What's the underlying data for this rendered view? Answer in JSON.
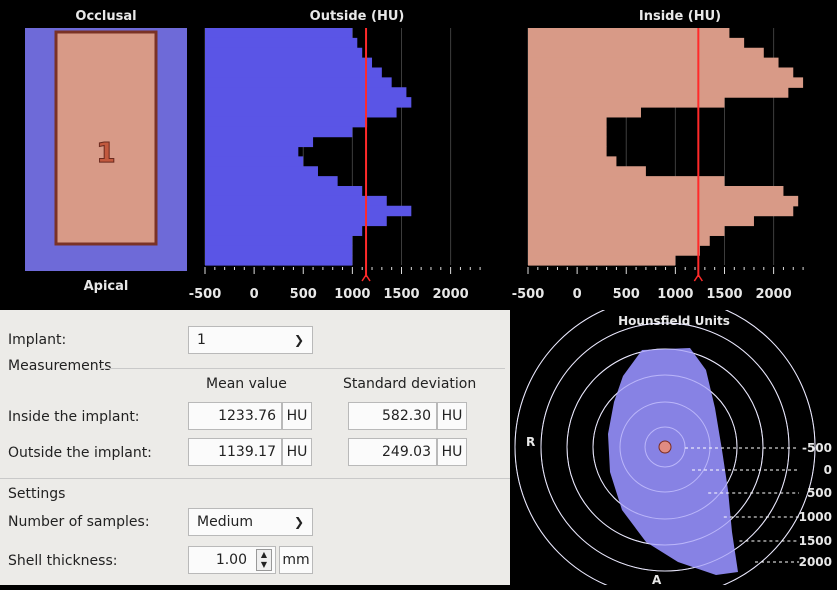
{
  "window": {
    "title": "Hounsfield Units"
  },
  "implant_view": {
    "top_label": "Occlusal",
    "bottom_label": "Apical",
    "implant_number": "1",
    "colors": {
      "bone": "#6e6ad8",
      "implant": "#d89a87",
      "implant_border": "#7a3226"
    }
  },
  "charts": {
    "outside": {
      "title": "Outside (HU)"
    },
    "inside": {
      "title": "Inside (HU)"
    },
    "tick_labels": [
      "-500",
      "0",
      "500",
      "1000",
      "1500",
      "2000"
    ]
  },
  "chart_data": [
    {
      "type": "area",
      "title": "Outside (HU)",
      "orientation": "horizontal",
      "x_ticks": [
        -500,
        0,
        500,
        1000,
        1500,
        2000
      ],
      "xlim": [
        -500,
        2350
      ],
      "mean_marker": 1139.17,
      "profile": [
        1000,
        1050,
        1100,
        1200,
        1300,
        1400,
        1550,
        1600,
        1450,
        1150,
        1000,
        600,
        450,
        500,
        650,
        850,
        1100,
        1350,
        1600,
        1350,
        1100,
        1000,
        1000,
        1000
      ],
      "color": "#5a55e6"
    },
    {
      "type": "area",
      "title": "Inside (HU)",
      "orientation": "horizontal",
      "x_ticks": [
        -500,
        0,
        500,
        1000,
        1500,
        2000
      ],
      "xlim": [
        -500,
        2350
      ],
      "mean_marker": 1233.76,
      "profile": [
        1550,
        1700,
        1900,
        2050,
        2200,
        2300,
        2150,
        1500,
        650,
        300,
        300,
        300,
        300,
        400,
        700,
        1500,
        2100,
        2250,
        2200,
        1800,
        1500,
        1350,
        1250,
        1000
      ],
      "color": "#d89a87"
    }
  ],
  "form": {
    "implant_label": "Implant:",
    "implant_value": "1",
    "measurements_title": "Measurements",
    "col_mean": "Mean value",
    "col_std": "Standard deviation",
    "inside_label": "Inside the implant:",
    "inside_mean": "1233.76",
    "inside_std": "582.30",
    "outside_label": "Outside the implant:",
    "outside_mean": "1139.17",
    "outside_std": "249.03",
    "unit": "HU",
    "settings_title": "Settings",
    "samples_label": "Number of samples:",
    "samples_value": "Medium",
    "thickness_label": "Shell thickness:",
    "thickness_value": "1.00",
    "thickness_unit": "mm"
  },
  "polar": {
    "title": "Hounsfield Units",
    "dir_right": "R",
    "dir_anterior": "A",
    "ring_labels": [
      "-500",
      "0",
      "500",
      "1000",
      "1500",
      "2000"
    ],
    "color": "#8e89f0"
  }
}
